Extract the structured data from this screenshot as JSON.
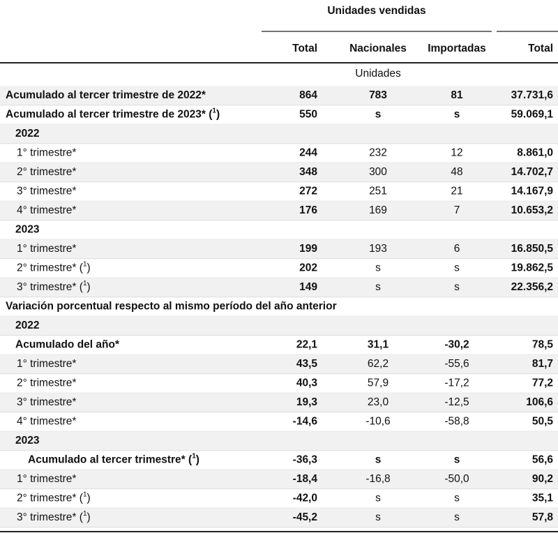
{
  "table": {
    "group_header": "Unidades vendidas",
    "columns": [
      "Total",
      "Nacionales",
      "Importadas",
      "Total"
    ],
    "unit": "Unidades",
    "rows": [
      {
        "kind": "total",
        "level": 0,
        "label": "Acumulado al tercer trimestre de 2022*",
        "cells": [
          "864",
          "783",
          "81",
          "37.731,6"
        ]
      },
      {
        "kind": "total",
        "level": 0,
        "label": "Acumulado al tercer trimestre de 2023*",
        "note": [
          "(",
          "1",
          ")"
        ],
        "cells": [
          "550",
          "s",
          "s",
          "59.069,1"
        ]
      },
      {
        "kind": "year",
        "level": 1,
        "label": "2022"
      },
      {
        "kind": "quarter",
        "level": 2,
        "label": "1° trimestre*",
        "cells": [
          "244",
          "232",
          "12",
          "8.861,0"
        ]
      },
      {
        "kind": "quarter",
        "level": 2,
        "label": "2° trimestre*",
        "cells": [
          "348",
          "300",
          "48",
          "14.702,7"
        ]
      },
      {
        "kind": "quarter",
        "level": 2,
        "label": "3° trimestre*",
        "cells": [
          "272",
          "251",
          "21",
          "14.167,9"
        ]
      },
      {
        "kind": "quarter",
        "level": 2,
        "label": "4° trimestre*",
        "cells": [
          "176",
          "169",
          "7",
          "10.653,2"
        ]
      },
      {
        "kind": "year",
        "level": 1,
        "label": "2023"
      },
      {
        "kind": "quarter",
        "level": 2,
        "label": "1° trimestre*",
        "cells": [
          "199",
          "193",
          "6",
          "16.850,5"
        ]
      },
      {
        "kind": "quarter",
        "level": 2,
        "label": "2° trimestre*",
        "note": [
          "(",
          "1",
          ")"
        ],
        "cells": [
          "202",
          "s",
          "s",
          "19.862,5"
        ]
      },
      {
        "kind": "quarter",
        "level": 2,
        "label": "3° trimestre*",
        "note": [
          "(",
          "1",
          ")"
        ],
        "cells": [
          "149",
          "s",
          "s",
          "22.356,2"
        ]
      },
      {
        "kind": "year",
        "level": 0,
        "label": "Variación porcentual respecto al mismo período del año anterior"
      },
      {
        "kind": "year",
        "level": 1,
        "label": "2022"
      },
      {
        "kind": "total",
        "level": 1,
        "label": "Acumulado del año*",
        "cells": [
          "22,1",
          "31,1",
          "-30,2",
          "78,5"
        ]
      },
      {
        "kind": "quarter",
        "level": 2,
        "label": "1° trimestre*",
        "cells": [
          "43,5",
          "62,2",
          "-55,6",
          "81,7"
        ]
      },
      {
        "kind": "quarter",
        "level": 2,
        "label": "2° trimestre*",
        "cells": [
          "40,3",
          "57,9",
          "-17,2",
          "77,2"
        ]
      },
      {
        "kind": "quarter",
        "level": 2,
        "label": "3° trimestre*",
        "cells": [
          "19,3",
          "23,0",
          "-12,5",
          "106,6"
        ]
      },
      {
        "kind": "quarter",
        "level": 2,
        "label": "4° trimestre*",
        "cells": [
          "-14,6",
          "-10,6",
          "-58,8",
          "50,5"
        ]
      },
      {
        "kind": "year",
        "level": 1,
        "label": "2023"
      },
      {
        "kind": "total",
        "level": 3,
        "label": "Acumulado al tercer trimestre*",
        "note": [
          "(",
          "1",
          ")"
        ],
        "cells": [
          "-36,3",
          "s",
          "s",
          "56,6"
        ]
      },
      {
        "kind": "quarter",
        "level": 2,
        "label": "1° trimestre*",
        "cells": [
          "-18,4",
          "-16,8",
          "-50,0",
          "90,2"
        ]
      },
      {
        "kind": "quarter",
        "level": 2,
        "label": "2° trimestre*",
        "note": [
          "(",
          "1",
          ")"
        ],
        "cells": [
          "-42,0",
          "s",
          "s",
          "35,1"
        ]
      },
      {
        "kind": "quarter",
        "level": 2,
        "label": "3° trimestre*",
        "note": [
          "(",
          "1",
          ")"
        ],
        "cells": [
          "-45,2",
          "s",
          "s",
          "57,8"
        ]
      }
    ]
  }
}
